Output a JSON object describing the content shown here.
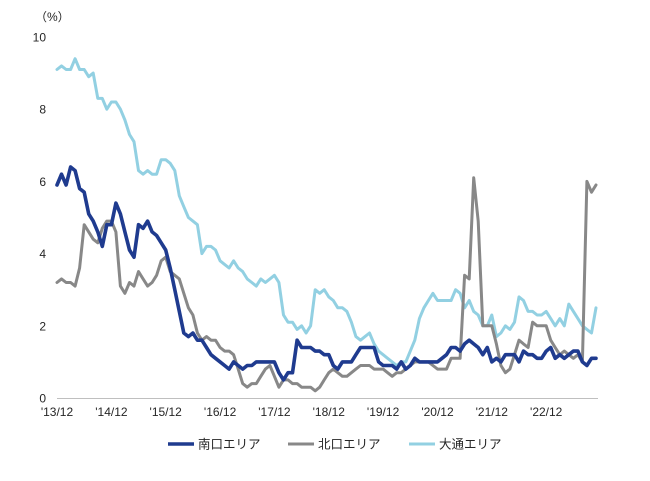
{
  "chart_data": {
    "type": "line",
    "ylabel": "（%）",
    "ylim": [
      0,
      10
    ],
    "yticks": [
      0,
      2,
      4,
      6,
      8,
      10
    ],
    "grid": false,
    "legend": "bottom",
    "xticks": [
      {
        "x": "2013-12",
        "label": "'13/12"
      },
      {
        "x": "2014-12",
        "label": "'14/12"
      },
      {
        "x": "2015-12",
        "label": "'15/12"
      },
      {
        "x": "2016-12",
        "label": "'16/12"
      },
      {
        "x": "2017-12",
        "label": "'17/12"
      },
      {
        "x": "2018-12",
        "label": "'18/12"
      },
      {
        "x": "2019-12",
        "label": "'19/12"
      },
      {
        "x": "2020-12",
        "label": "'20/12"
      },
      {
        "x": "2021-12",
        "label": "'21/12"
      },
      {
        "x": "2022-12",
        "label": "'22/12"
      }
    ],
    "x": [
      "2013-12",
      "2014-01",
      "2014-02",
      "2014-03",
      "2014-04",
      "2014-05",
      "2014-06",
      "2014-07",
      "2014-08",
      "2014-09",
      "2014-10",
      "2014-11",
      "2014-12",
      "2015-01",
      "2015-02",
      "2015-03",
      "2015-04",
      "2015-05",
      "2015-06",
      "2015-07",
      "2015-08",
      "2015-09",
      "2015-10",
      "2015-11",
      "2015-12",
      "2016-01",
      "2016-02",
      "2016-03",
      "2016-04",
      "2016-05",
      "2016-06",
      "2016-07",
      "2016-08",
      "2016-09",
      "2016-10",
      "2016-11",
      "2016-12",
      "2017-01",
      "2017-02",
      "2017-03",
      "2017-04",
      "2017-05",
      "2017-06",
      "2017-07",
      "2017-08",
      "2017-09",
      "2017-10",
      "2017-11",
      "2017-12",
      "2018-01",
      "2018-02",
      "2018-03",
      "2018-04",
      "2018-05",
      "2018-06",
      "2018-07",
      "2018-08",
      "2018-09",
      "2018-10",
      "2018-11",
      "2018-12",
      "2019-01",
      "2019-02",
      "2019-03",
      "2019-04",
      "2019-05",
      "2019-06",
      "2019-07",
      "2019-08",
      "2019-09",
      "2019-10",
      "2019-11",
      "2019-12",
      "2020-01",
      "2020-02",
      "2020-03",
      "2020-04",
      "2020-05",
      "2020-06",
      "2020-07",
      "2020-08",
      "2020-09",
      "2020-10",
      "2020-11",
      "2020-12",
      "2021-01",
      "2021-02",
      "2021-03",
      "2021-04",
      "2021-05",
      "2021-06",
      "2021-07",
      "2021-08",
      "2021-09",
      "2021-10",
      "2021-11",
      "2021-12",
      "2022-01",
      "2022-02",
      "2022-03",
      "2022-04",
      "2022-05",
      "2022-06",
      "2022-07",
      "2022-08",
      "2022-09",
      "2022-10",
      "2022-11",
      "2022-12",
      "2023-01",
      "2023-02",
      "2023-03",
      "2023-04",
      "2023-05",
      "2023-06",
      "2023-07",
      "2023-08",
      "2023-09",
      "2023-10",
      "2023-11"
    ],
    "series": [
      {
        "name": "南口エリア",
        "color": "#1f3b8f",
        "values": [
          5.9,
          6.2,
          5.9,
          6.4,
          6.3,
          5.8,
          5.7,
          5.1,
          4.9,
          4.6,
          4.2,
          4.8,
          4.8,
          5.4,
          5.1,
          4.6,
          4.1,
          3.9,
          4.8,
          4.7,
          4.9,
          4.6,
          4.5,
          4.3,
          4.1,
          3.6,
          3.0,
          2.4,
          1.8,
          1.7,
          1.8,
          1.6,
          1.6,
          1.4,
          1.2,
          1.1,
          1.0,
          0.9,
          0.8,
          1.0,
          0.9,
          0.8,
          0.9,
          0.9,
          1.0,
          1.0,
          1.0,
          1.0,
          1.0,
          0.7,
          0.5,
          0.7,
          0.7,
          1.6,
          1.4,
          1.4,
          1.4,
          1.3,
          1.3,
          1.2,
          1.2,
          0.9,
          0.8,
          1.0,
          1.0,
          1.0,
          1.2,
          1.4,
          1.4,
          1.4,
          1.4,
          1.0,
          0.9,
          0.9,
          0.9,
          0.8,
          1.0,
          0.8,
          0.9,
          1.1,
          1.0,
          1.0,
          1.0,
          1.0,
          1.0,
          1.1,
          1.2,
          1.4,
          1.4,
          1.3,
          1.5,
          1.6,
          1.5,
          1.4,
          1.2,
          1.4,
          1.0,
          1.1,
          1.0,
          1.2,
          1.2,
          1.2,
          1.0,
          1.3,
          1.2,
          1.2,
          1.1,
          1.1,
          1.3,
          1.4,
          1.1,
          1.2,
          1.1,
          1.2,
          1.3,
          1.3,
          1.0,
          0.9,
          1.1,
          1.1
        ]
      },
      {
        "name": "北口エリア",
        "color": "#888888",
        "values": [
          3.2,
          3.3,
          3.2,
          3.2,
          3.1,
          3.6,
          4.8,
          4.6,
          4.4,
          4.3,
          4.7,
          4.9,
          4.9,
          4.6,
          3.1,
          2.9,
          3.2,
          3.1,
          3.5,
          3.3,
          3.1,
          3.2,
          3.4,
          3.8,
          3.9,
          3.5,
          3.4,
          3.3,
          2.9,
          2.5,
          2.3,
          1.8,
          1.6,
          1.7,
          1.6,
          1.6,
          1.4,
          1.3,
          1.3,
          1.2,
          0.8,
          0.4,
          0.3,
          0.4,
          0.4,
          0.6,
          0.8,
          0.9,
          0.6,
          0.3,
          0.5,
          0.5,
          0.4,
          0.4,
          0.3,
          0.3,
          0.3,
          0.2,
          0.3,
          0.5,
          0.7,
          0.8,
          0.7,
          0.6,
          0.6,
          0.7,
          0.8,
          0.9,
          0.9,
          0.9,
          0.8,
          0.8,
          0.8,
          0.7,
          0.6,
          0.7,
          0.7,
          0.8,
          0.9,
          1.0,
          1.0,
          1.0,
          1.0,
          0.9,
          0.8,
          0.8,
          0.8,
          1.1,
          1.1,
          1.1,
          3.4,
          3.3,
          6.1,
          4.9,
          2.0,
          2.0,
          2.0,
          1.5,
          0.9,
          0.7,
          0.8,
          1.2,
          1.6,
          1.5,
          1.4,
          2.1,
          2.0,
          2.0,
          2.0,
          1.6,
          1.4,
          1.2,
          1.3,
          1.2,
          1.1,
          1.2,
          1.0,
          6.0,
          5.7,
          5.9
        ]
      },
      {
        "name": "大通エリア",
        "color": "#92d0e2",
        "values": [
          9.1,
          9.2,
          9.1,
          9.1,
          9.4,
          9.1,
          9.1,
          8.9,
          9.0,
          8.3,
          8.3,
          8.0,
          8.2,
          8.2,
          8.0,
          7.7,
          7.3,
          7.1,
          6.3,
          6.2,
          6.3,
          6.2,
          6.2,
          6.6,
          6.6,
          6.5,
          6.3,
          5.6,
          5.3,
          5.0,
          4.9,
          4.8,
          4.0,
          4.2,
          4.2,
          4.1,
          3.8,
          3.7,
          3.6,
          3.8,
          3.6,
          3.5,
          3.3,
          3.2,
          3.1,
          3.3,
          3.2,
          3.3,
          3.4,
          3.2,
          2.3,
          2.1,
          2.1,
          1.9,
          2.0,
          1.8,
          2.0,
          3.0,
          2.9,
          3.0,
          2.8,
          2.7,
          2.5,
          2.5,
          2.4,
          2.1,
          1.7,
          1.6,
          1.7,
          1.8,
          1.5,
          1.3,
          1.2,
          1.1,
          1.0,
          0.9,
          1.0,
          1.0,
          1.3,
          1.6,
          2.2,
          2.5,
          2.7,
          2.9,
          2.7,
          2.7,
          2.7,
          2.7,
          3.0,
          2.9,
          2.5,
          2.7,
          2.4,
          2.3,
          2.0,
          2.0,
          2.3,
          1.7,
          1.8,
          2.0,
          1.9,
          2.1,
          2.8,
          2.7,
          2.4,
          2.4,
          2.3,
          2.3,
          2.4,
          2.2,
          2.0,
          2.2,
          2.0,
          2.6,
          2.4,
          2.2,
          2.0,
          1.9,
          1.8,
          2.5
        ]
      }
    ]
  }
}
